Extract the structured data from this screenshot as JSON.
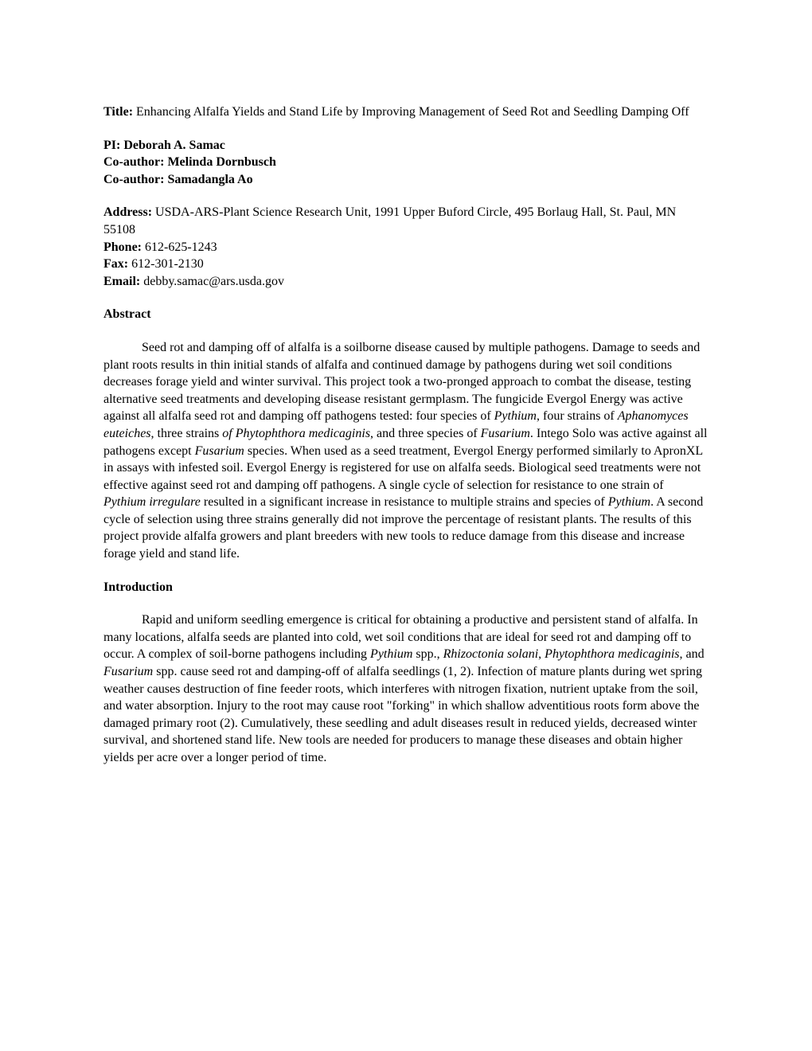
{
  "title": {
    "label": "Title:",
    "text": " Enhancing Alfalfa Yields and Stand Life by Improving Management of Seed Rot and Seedling Damping Off"
  },
  "authors": {
    "pi_label": "PI: ",
    "pi_name": "Deborah A. Samac",
    "co1_label": "Co-author: ",
    "co1_name": "Melinda Dornbusch",
    "co2_label": "Co-author: ",
    "co2_name": "Samadangla Ao"
  },
  "contact": {
    "address_label": "Address:",
    "address_text": " USDA-ARS-Plant Science Research Unit, 1991 Upper Buford Circle, 495 Borlaug Hall, St. Paul, MN 55108",
    "phone_label": "Phone:",
    "phone_text": " 612-625-1243",
    "fax_label": "Fax:",
    "fax_text": " 612-301-2130",
    "email_label": "Email:",
    "email_text": " debby.samac@ars.usda.gov"
  },
  "abstract": {
    "heading": "Abstract",
    "p1_1": "Seed rot and damping off of alfalfa is a soilborne disease caused by multiple pathogens. Damage to seeds and plant roots results in thin initial stands of alfalfa and continued damage by pathogens during wet soil conditions decreases forage yield and winter survival. This project took a two-pronged approach to combat the disease, testing alternative seed treatments and developing disease resistant germplasm. The fungicide Evergol Energy was active against all alfalfa seed rot and damping off pathogens tested: four species of ",
    "p1_i1": "Pythium",
    "p1_2": ", four strains of ",
    "p1_i2": "Aphanomyces euteiches",
    "p1_3": ", three strains ",
    "p1_i3": "of Phytophthora medicaginis",
    "p1_4": ", and three species of ",
    "p1_i4": "Fusarium",
    "p1_5": ". Intego Solo was active against all pathogens except ",
    "p1_i5": "Fusarium",
    "p1_6": " species. When used as a seed treatment, Evergol Energy performed similarly to ApronXL in assays with infested soil. Evergol Energy is registered for use on alfalfa seeds. Biological seed treatments were not effective against seed rot and damping off pathogens. A single cycle of selection for resistance to one strain of ",
    "p1_i6": "Pythium irregulare",
    "p1_7": " resulted in a significant increase in resistance to multiple strains and species of ",
    "p1_i7": "Pythium",
    "p1_8": ". A second cycle of selection using three strains generally did not improve the percentage of resistant plants. The results of this project provide alfalfa growers and plant breeders with new tools to reduce damage from this disease and increase forage yield and stand life."
  },
  "introduction": {
    "heading": "Introduction",
    "p1_1": "Rapid and uniform seedling emergence is critical for obtaining a productive and persistent stand of alfalfa. In many locations, alfalfa seeds are planted into cold, wet soil conditions that are ideal for seed rot and damping off to occur. A complex of soil-borne pathogens including ",
    "p1_i1": "Pythium",
    "p1_2": " spp., ",
    "p1_i2": "Rhizoctonia solani",
    "p1_3": ", ",
    "p1_i3": "Phytophthora medicaginis",
    "p1_4": ", and ",
    "p1_i4": "Fusarium",
    "p1_5": " spp. cause seed rot and damping-off of alfalfa seedlings (1, 2). Infection of mature plants during wet spring weather causes destruction of fine feeder roots, which interferes with nitrogen fixation, nutrient uptake from the soil, and water absorption. Injury to the root may cause root \"forking\" in which shallow adventitious roots form above the damaged primary root (2). Cumulatively, these seedling and adult diseases result in reduced yields, decreased winter survival, and shortened stand life. New tools are needed for producers to manage these diseases and obtain higher yields per acre over a longer period of time."
  }
}
